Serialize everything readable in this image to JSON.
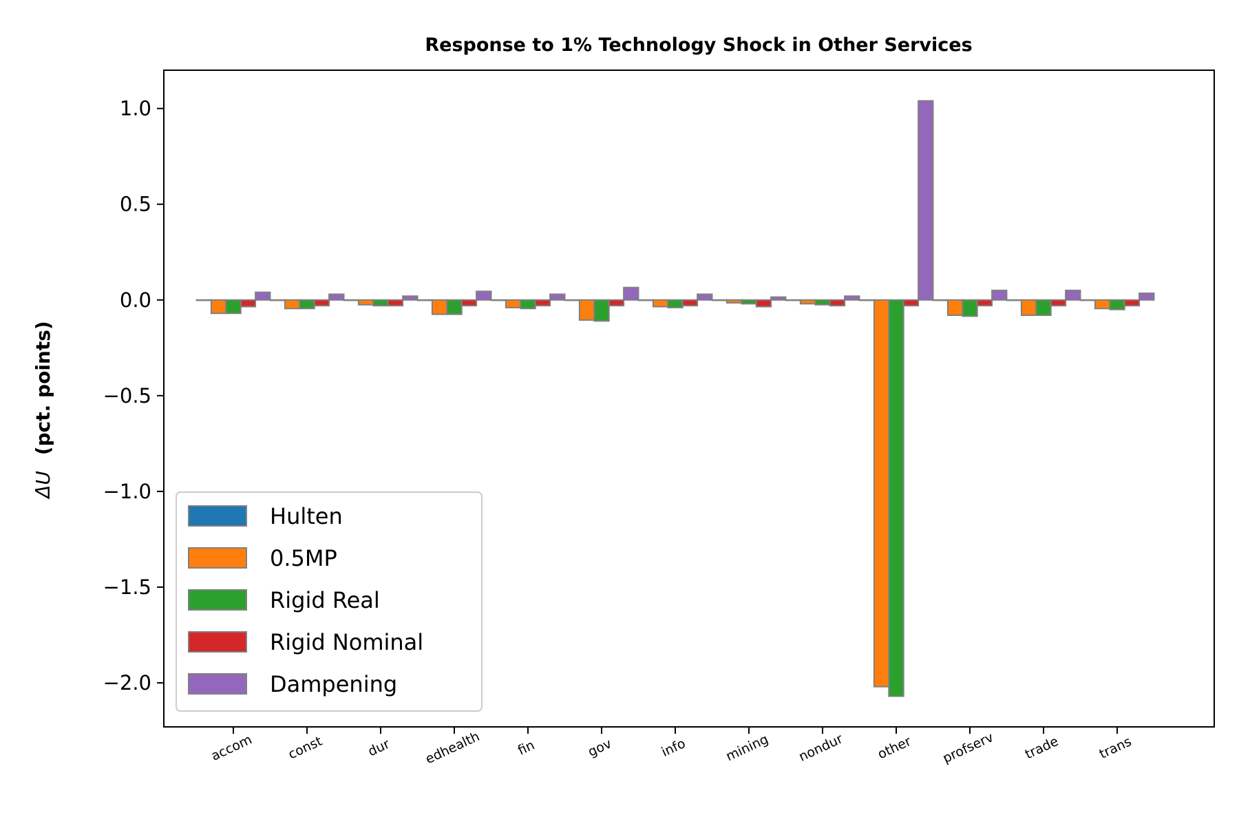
{
  "chart_data": {
    "type": "bar",
    "title": "Response to 1% Technology Shock in Other Services",
    "xlabel": "",
    "ylabel_prefix": "ΔU",
    "ylabel_suffix": "(pct. points)",
    "ylim": [
      -2.23,
      1.2
    ],
    "yticks": [
      1.0,
      0.5,
      0.0,
      -0.5,
      -1.0,
      -1.5,
      -2.0
    ],
    "ytick_labels": [
      "1.0",
      "0.5",
      "0.0",
      "−0.5",
      "−1.0",
      "−1.5",
      "−2.0"
    ],
    "categories": [
      "accom",
      "const",
      "dur",
      "edhealth",
      "fin",
      "gov",
      "info",
      "mining",
      "nondur",
      "other",
      "profserv",
      "trade",
      "trans"
    ],
    "series": [
      {
        "name": "Hulten",
        "color": "#1f77b4",
        "values": [
          0,
          0,
          0,
          0,
          0,
          0,
          0,
          0,
          0,
          0,
          0,
          0,
          0
        ]
      },
      {
        "name": "0.5MP",
        "color": "#ff7f0e",
        "values": [
          -0.07,
          -0.045,
          -0.025,
          -0.075,
          -0.04,
          -0.105,
          -0.035,
          -0.015,
          -0.02,
          -2.02,
          -0.08,
          -0.08,
          -0.045
        ]
      },
      {
        "name": "Rigid Real",
        "color": "#2ca02c",
        "values": [
          -0.07,
          -0.045,
          -0.03,
          -0.075,
          -0.045,
          -0.11,
          -0.04,
          -0.02,
          -0.025,
          -2.07,
          -0.085,
          -0.08,
          -0.05
        ]
      },
      {
        "name": "Rigid Nominal",
        "color": "#d62728",
        "values": [
          -0.035,
          -0.03,
          -0.03,
          -0.03,
          -0.03,
          -0.03,
          -0.03,
          -0.035,
          -0.03,
          -0.03,
          -0.03,
          -0.03,
          -0.03
        ]
      },
      {
        "name": "Dampening",
        "color": "#9467bd",
        "values": [
          0.04,
          0.03,
          0.02,
          0.045,
          0.03,
          0.065,
          0.03,
          0.015,
          0.02,
          1.04,
          0.05,
          0.05,
          0.035
        ]
      }
    ],
    "legend_position": "lower-left",
    "grid": false
  }
}
